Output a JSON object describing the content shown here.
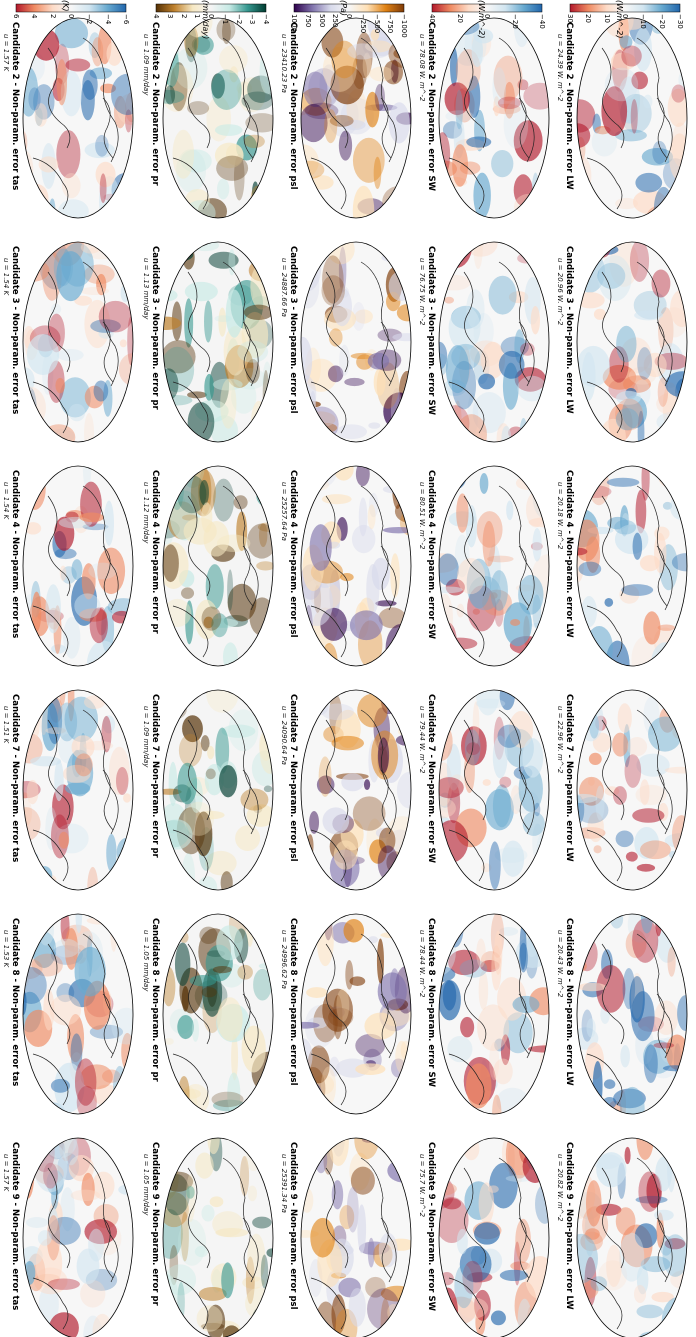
{
  "rows": [
    {
      "var": "tas",
      "unit_label": "(K)",
      "cmap": "rdbu",
      "ticks": [
        "6",
        "4",
        "2",
        "0",
        "−2",
        "−4",
        "−6"
      ],
      "panels": [
        {
          "title": "Candidate 2 - Non-param. error tas",
          "stat": "u = 1.57 K"
        },
        {
          "title": "Candidate 3 - Non-param. error tas",
          "stat": "u = 1.54 K"
        },
        {
          "title": "Candidate 4 - Non-param. error tas",
          "stat": "u = 1.54 K"
        },
        {
          "title": "Candidate 7 - Non-param. error tas",
          "stat": "u = 1.51 K"
        },
        {
          "title": "Candidate 8 - Non-param. error tas",
          "stat": "u = 1.53 K"
        },
        {
          "title": "Candidate 9 - Non-param. error tas",
          "stat": "u = 1.57 K"
        }
      ]
    },
    {
      "var": "pr",
      "unit_label": "(mm/day)",
      "cmap": "brbg",
      "ticks": [
        "4",
        "3",
        "2",
        "1",
        "0",
        "−1",
        "−2",
        "−3",
        "−4"
      ],
      "panels": [
        {
          "title": "Candidate 2 - Non-param. error pr",
          "stat": "u = 1.09 mm/day"
        },
        {
          "title": "Candidate 3 - Non-param. error pr",
          "stat": "u = 1.13 mm/day"
        },
        {
          "title": "Candidate 4 - Non-param. error pr",
          "stat": "u = 1.12 mm/day"
        },
        {
          "title": "Candidate 7 - Non-param. error pr",
          "stat": "u = 1.09 mm/day"
        },
        {
          "title": "Candidate 8 - Non-param. error pr",
          "stat": "u = 1.05 mm/day"
        },
        {
          "title": "Candidate 9 - Non-param. error pr",
          "stat": "u = 1.05 mm/day"
        }
      ]
    },
    {
      "var": "psl",
      "unit_label": "(Pa)",
      "cmap": "puor",
      "ticks": [
        "1000",
        "750",
        "500",
        "250",
        "0",
        "−250",
        "−500",
        "−750",
        "−1000"
      ],
      "panels": [
        {
          "title": "Candidate 2 - Non-param. error psl",
          "stat": "u = 23410.23 Pa"
        },
        {
          "title": "Candidate 3 - Non-param. error psl",
          "stat": "u = 24887.66 Pa"
        },
        {
          "title": "Candidate 4 - Non-param. error psl",
          "stat": "u = 25257.64 Pa"
        },
        {
          "title": "Candidate 7 - Non-param. error psl",
          "stat": "u = 24090.64 Pa"
        },
        {
          "title": "Candidate 8 - Non-param. error psl",
          "stat": "u = 24996.62 Pa"
        },
        {
          "title": "Candidate 9 - Non-param. error psl",
          "stat": "u = 25391.34 Pa"
        }
      ]
    },
    {
      "var": "SW",
      "unit_label": "(W.m^-2)",
      "cmap": "rdbu",
      "ticks": [
        "40",
        "20",
        "0",
        "−20",
        "−40"
      ],
      "panels": [
        {
          "title": "Candidate 2 - Non-param. error SW",
          "stat": "u = 78.08 W. m^-2"
        },
        {
          "title": "Candidate 3 - Non-param. error SW",
          "stat": "u = 76.75 W. m^-2"
        },
        {
          "title": "Candidate 4 - Non-param. error SW",
          "stat": "u = 80.51 W. m^-2"
        },
        {
          "title": "Candidate 7 - Non-param. error SW",
          "stat": "u = 79.44 W. m^-2"
        },
        {
          "title": "Candidate 8 - Non-param. error SW",
          "stat": "u = 78.44 W. m^-2"
        },
        {
          "title": "Candidate 9 - Non-param. error SW",
          "stat": "u = 75.7 W. m^-2"
        }
      ]
    },
    {
      "var": "LW",
      "unit_label": "(W.m^-2)",
      "cmap": "rdbu",
      "ticks": [
        "30",
        "20",
        "10",
        "0",
        "−10",
        "−20",
        "−30"
      ],
      "panels": [
        {
          "title": "Candidate 2 - Non-param. error LW",
          "stat": "u = 24.39 W. m^-2"
        },
        {
          "title": "Candidate 3 - Non-param. error LW",
          "stat": "u = 20.96 W. m^-2"
        },
        {
          "title": "Candidate 4 - Non-param. error LW",
          "stat": "u = 20.18 W. m^-2"
        },
        {
          "title": "Candidate 7 - Non-param. error LW",
          "stat": "u = 22.96 W. m^-2"
        },
        {
          "title": "Candidate 8 - Non-param. error LW",
          "stat": "u = 20.43 W. m^-2"
        },
        {
          "title": "Candidate 9 - Non-param. error LW",
          "stat": "u = 20.82 W. m^-2"
        }
      ]
    }
  ],
  "colors": {
    "rdbu": [
      "#b2182b",
      "#ef8a62",
      "#fddbc7",
      "#f7f7f7",
      "#d1e5f0",
      "#67a9cf",
      "#2166ac"
    ],
    "brbg": [
      "#543005",
      "#bf812d",
      "#f6e8c3",
      "#f5f5f5",
      "#c7eae5",
      "#35978f",
      "#003c30"
    ],
    "puor": [
      "#2d004b",
      "#8073ac",
      "#d8daeb",
      "#f7f7f7",
      "#fee0b6",
      "#e08214",
      "#7f3b08"
    ]
  }
}
